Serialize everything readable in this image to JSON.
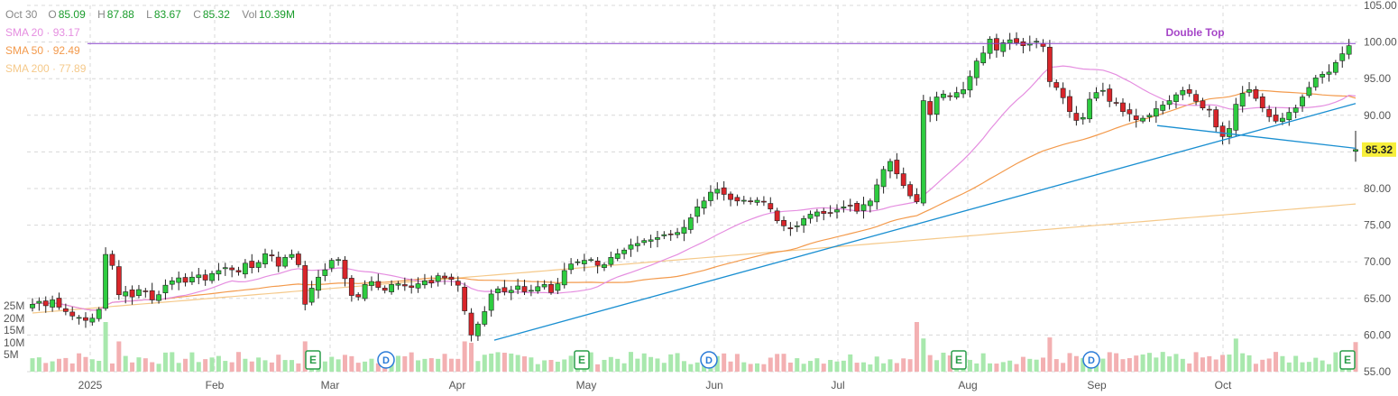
{
  "legend": {
    "date": "Oct 30",
    "open_label": "O",
    "open": "85.09",
    "high_label": "H",
    "high": "87.88",
    "low_label": "L",
    "low": "83.67",
    "close_label": "C",
    "close": "85.32",
    "vol_label": "Vol",
    "vol": "10.39M"
  },
  "sma": [
    {
      "label": "SMA 20 · 93.17",
      "color": "#e58ee0"
    },
    {
      "label": "SMA 50 · 92.49",
      "color": "#f39a4c"
    },
    {
      "label": "SMA 200 · 77.89",
      "color": "#f5c98a"
    }
  ],
  "colors": {
    "up": "#2ecc40",
    "down": "#d9252a",
    "grid": "#d8d8d8",
    "trend": "#1a8fd1",
    "resistance": "#8844cc",
    "price_badge": "#f7ef3a"
  },
  "chart_data": {
    "type": "candlestick",
    "price_axis": {
      "ticks": [
        "105.00",
        "100.00",
        "95.00",
        "90.00",
        "85.00",
        "80.00",
        "75.00",
        "70.00",
        "65.00",
        "60.00",
        "55.00"
      ],
      "range": [
        55,
        105
      ]
    },
    "volume_axis": {
      "ticks": [
        "25M",
        "20M",
        "15M",
        "10M",
        "5M"
      ]
    },
    "x_axis": {
      "ticks": [
        "2025",
        "Feb",
        "Mar",
        "Apr",
        "May",
        "Jun",
        "Jul",
        "Aug",
        "Sep",
        "Oct"
      ]
    },
    "last_price": "85.32",
    "annotation": {
      "text": "Double Top",
      "level": 100.0
    },
    "event_markers": [
      {
        "type": "E",
        "month": "Mar"
      },
      {
        "type": "D",
        "month": "Mar"
      },
      {
        "type": "E",
        "month": "May"
      },
      {
        "type": "D",
        "month": "Jun"
      },
      {
        "type": "E",
        "month": "Aug"
      },
      {
        "type": "D",
        "month": "Sep"
      },
      {
        "type": "E",
        "month": "Oct"
      }
    ],
    "closes": [
      64.2,
      64.6,
      64.0,
      64.8,
      63.8,
      63.2,
      62.6,
      62.4,
      62.0,
      62.3,
      63.5,
      71.0,
      69.5,
      65.5,
      65.9,
      65.2,
      66.2,
      66.0,
      64.8,
      65.5,
      66.8,
      67.4,
      67.8,
      67.2,
      67.9,
      68.2,
      67.5,
      68.4,
      68.8,
      69.2,
      68.9,
      68.6,
      69.8,
      69.2,
      69.9,
      71.1,
      70.8,
      69.4,
      70.6,
      71.0,
      69.6,
      64.2,
      66.4,
      67.9,
      68.9,
      70.2,
      70.3,
      67.7,
      65.4,
      65.2,
      66.9,
      67.3,
      66.5,
      66.1,
      66.9,
      67.0,
      66.7,
      66.5,
      67.0,
      67.4,
      67.1,
      68.1,
      67.8,
      67.6,
      66.8,
      63.3,
      60.0,
      61.5,
      63.2,
      65.6,
      66.3,
      65.9,
      66.1,
      66.7,
      65.9,
      66.1,
      66.6,
      66.9,
      65.8,
      67.0,
      68.8,
      69.7,
      70.0,
      70.2,
      70.3,
      69.5,
      69.6,
      70.6,
      71.1,
      71.6,
      72.3,
      72.5,
      72.9,
      73.0,
      73.3,
      73.7,
      73.8,
      74.0,
      74.7,
      76.0,
      77.5,
      78.3,
      79.5,
      79.9,
      79.2,
      78.5,
      78.3,
      78.4,
      78.3,
      78.4,
      78.2,
      77.2,
      75.6,
      74.9,
      74.5,
      74.9,
      75.9,
      76.5,
      76.8,
      76.6,
      76.7,
      77.1,
      77.5,
      77.7,
      76.9,
      77.8,
      78.3,
      80.5,
      82.6,
      83.7,
      82.0,
      80.4,
      79.0,
      78.2,
      92.0,
      90.1,
      92.5,
      92.9,
      92.6,
      93.1,
      93.5,
      95.3,
      97.4,
      98.5,
      100.4,
      98.9,
      99.9,
      100.3,
      99.9,
      99.5,
      99.8,
      100.1,
      99.4,
      94.6,
      93.8,
      92.4,
      90.5,
      89.3,
      89.7,
      92.2,
      93.1,
      93.4,
      91.9,
      91.7,
      90.5,
      90.2,
      89.4,
      89.6,
      90.0,
      90.9,
      91.4,
      92.0,
      92.8,
      93.4,
      93.0,
      91.9,
      91.0,
      90.8,
      88.4,
      87.1,
      88.2,
      91.5,
      93.0,
      93.5,
      92.3,
      91.0,
      89.8,
      89.2,
      89.6,
      90.4,
      91.0,
      92.5,
      93.8,
      95.1,
      95.6,
      95.9,
      97.2,
      98.4,
      99.5,
      85.32
    ]
  }
}
